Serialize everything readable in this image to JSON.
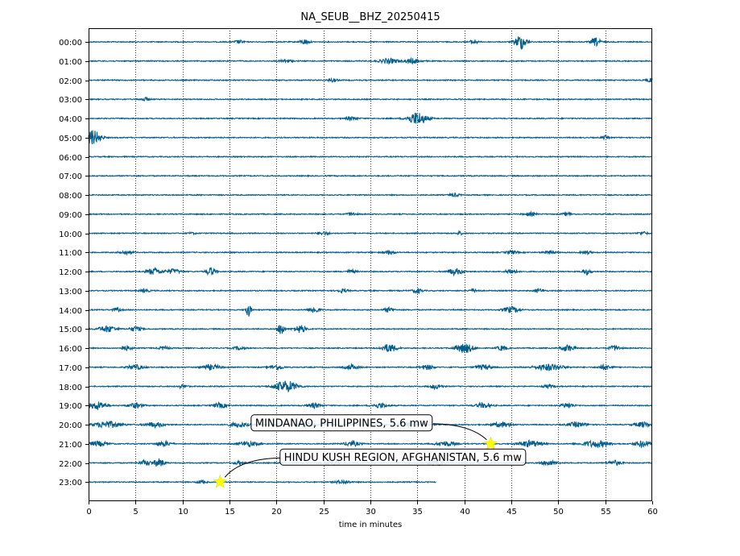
{
  "chart_data": {
    "type": "line",
    "title": "NA_SEUB__BHZ_20250415",
    "xlabel": "time in minutes",
    "ylabel": "",
    "xlim": [
      0,
      60
    ],
    "x_ticks": [
      "0",
      "5",
      "10",
      "15",
      "20",
      "25",
      "30",
      "35",
      "40",
      "45",
      "50",
      "55",
      "60"
    ],
    "y_ticks": [
      "00:00",
      "01:00",
      "02:00",
      "03:00",
      "04:00",
      "05:00",
      "06:00",
      "07:00",
      "08:00",
      "09:00",
      "10:00",
      "11:00",
      "12:00",
      "13:00",
      "14:00",
      "15:00",
      "16:00",
      "17:00",
      "18:00",
      "19:00",
      "20:00",
      "21:00",
      "22:00",
      "23:00"
    ],
    "grid": "vertical dotted lines at x ticks",
    "trace_color": "#045e8c",
    "last_trace_end_minute": 37,
    "traces": [
      {
        "hour": "00:00",
        "bursts": [
          [
            16,
            0.5,
            2
          ],
          [
            23,
            0.5,
            3
          ],
          [
            41,
            0.4,
            3
          ],
          [
            46,
            0.6,
            9
          ],
          [
            54,
            0.5,
            5
          ]
        ]
      },
      {
        "hour": "01:00",
        "bursts": [
          [
            21,
            0.6,
            2
          ],
          [
            32,
            1,
            3
          ],
          [
            34.5,
            0.8,
            3
          ]
        ]
      },
      {
        "hour": "02:00",
        "bursts": [
          [
            26,
            0.5,
            2
          ],
          [
            60,
            0.6,
            3
          ]
        ]
      },
      {
        "hour": "03:00",
        "bursts": [
          [
            6,
            0.5,
            2
          ]
        ]
      },
      {
        "hour": "04:00",
        "bursts": [
          [
            28,
            0.6,
            2
          ],
          [
            35,
            1,
            8
          ]
        ]
      },
      {
        "hour": "05:00",
        "bursts": [
          [
            0.5,
            0.8,
            9
          ],
          [
            55,
            0.4,
            2
          ]
        ]
      },
      {
        "hour": "06:00",
        "bursts": []
      },
      {
        "hour": "07:00",
        "bursts": []
      },
      {
        "hour": "08:00",
        "bursts": [
          [
            39,
            0.5,
            2
          ]
        ]
      },
      {
        "hour": "09:00",
        "bursts": [
          [
            28,
            0.5,
            2
          ],
          [
            47,
            0.6,
            2
          ],
          [
            51,
            0.5,
            2
          ]
        ]
      },
      {
        "hour": "10:00",
        "bursts": [
          [
            11,
            0.4,
            1
          ],
          [
            25,
            0.6,
            2
          ],
          [
            39.5,
            0.3,
            2
          ],
          [
            59,
            0.5,
            2
          ]
        ]
      },
      {
        "hour": "11:00",
        "bursts": [
          [
            4,
            0.7,
            2
          ],
          [
            32,
            0.6,
            2
          ],
          [
            45,
            0.6,
            2
          ],
          [
            49,
            0.6,
            2
          ],
          [
            53,
            0.5,
            2
          ]
        ]
      },
      {
        "hour": "12:00",
        "bursts": [
          [
            7,
            0.8,
            4
          ],
          [
            9,
            0.7,
            3
          ],
          [
            13,
            0.5,
            5
          ],
          [
            28,
            0.5,
            2
          ],
          [
            39,
            0.8,
            4
          ],
          [
            45,
            0.6,
            3
          ],
          [
            53,
            0.5,
            3
          ]
        ]
      },
      {
        "hour": "13:00",
        "bursts": [
          [
            6,
            0.5,
            2
          ],
          [
            27,
            0.6,
            2
          ],
          [
            35,
            0.5,
            3
          ],
          [
            41,
            0.5,
            2
          ],
          [
            48,
            0.5,
            2
          ]
        ]
      },
      {
        "hour": "14:00",
        "bursts": [
          [
            3,
            0.5,
            2
          ],
          [
            17,
            0.3,
            8
          ],
          [
            24,
            0.6,
            4
          ],
          [
            32,
            0.5,
            3
          ],
          [
            45,
            0.8,
            4
          ]
        ]
      },
      {
        "hour": "15:00",
        "bursts": [
          [
            2,
            0.9,
            4
          ],
          [
            5,
            0.6,
            3
          ],
          [
            20.5,
            0.3,
            9
          ],
          [
            22.5,
            0.6,
            5
          ]
        ]
      },
      {
        "hour": "16:00",
        "bursts": [
          [
            4,
            0.6,
            3
          ],
          [
            8,
            0.6,
            2
          ],
          [
            16,
            0.6,
            2
          ],
          [
            32,
            0.8,
            5
          ],
          [
            40,
            0.9,
            6
          ],
          [
            44,
            0.5,
            3
          ],
          [
            51,
            0.7,
            4
          ],
          [
            56,
            0.6,
            3
          ]
        ]
      },
      {
        "hour": "17:00",
        "bursts": [
          [
            5,
            0.8,
            3
          ],
          [
            13,
            1,
            3
          ],
          [
            20,
            0.7,
            3
          ],
          [
            28,
            0.7,
            3
          ],
          [
            36,
            0.7,
            3
          ],
          [
            42,
            0.8,
            3
          ],
          [
            49,
            1.5,
            4
          ],
          [
            55,
            0.7,
            3
          ]
        ]
      },
      {
        "hour": "18:00",
        "bursts": [
          [
            10,
            0.5,
            2
          ],
          [
            21,
            1.2,
            7
          ],
          [
            37,
            0.6,
            3
          ],
          [
            49,
            0.6,
            2
          ]
        ]
      },
      {
        "hour": "19:00",
        "bursts": [
          [
            1,
            0.9,
            5
          ],
          [
            5,
            0.8,
            3
          ],
          [
            14,
            0.7,
            3
          ],
          [
            24,
            0.7,
            3
          ],
          [
            31,
            0.8,
            3
          ],
          [
            42,
            0.8,
            3
          ],
          [
            51,
            0.7,
            3
          ]
        ]
      },
      {
        "hour": "20:00",
        "bursts": [
          [
            2,
            1.4,
            4
          ],
          [
            7,
            1,
            3
          ],
          [
            16,
            1,
            3
          ],
          [
            23,
            1,
            3
          ],
          [
            34,
            1,
            3
          ],
          [
            44,
            1,
            3
          ],
          [
            52,
            1,
            3
          ],
          [
            59,
            0.9,
            3
          ]
        ]
      },
      {
        "hour": "21:00",
        "bursts": [
          [
            1,
            1,
            3
          ],
          [
            8,
            0.8,
            3
          ],
          [
            17,
            1,
            3
          ],
          [
            28,
            0.8,
            3
          ],
          [
            38,
            1,
            3
          ],
          [
            47,
            1.2,
            4
          ],
          [
            54,
            1.4,
            4
          ],
          [
            59,
            0.8,
            4
          ]
        ]
      },
      {
        "hour": "22:00",
        "bursts": [
          [
            6,
            0.6,
            3
          ],
          [
            7.5,
            0.6,
            5
          ],
          [
            16,
            0.6,
            2
          ],
          [
            26,
            0.7,
            3
          ],
          [
            37,
            0.8,
            3
          ],
          [
            49,
            0.8,
            3
          ],
          [
            56,
            0.7,
            3
          ]
        ]
      },
      {
        "hour": "23:00",
        "bursts": [
          [
            12,
            0.5,
            2
          ],
          [
            27,
            0.8,
            2
          ]
        ]
      }
    ],
    "events": [
      {
        "label": "MINDANAO, PHILIPPINES, 5.6 mw",
        "minute": 42.8,
        "hour": "21:00",
        "marker_color": "#ffff00"
      },
      {
        "label": "HINDU KUSH REGION, AFGHANISTAN, 5.6 mw",
        "minute": 14.0,
        "hour": "23:00",
        "marker_color": "#ffff00"
      }
    ]
  }
}
